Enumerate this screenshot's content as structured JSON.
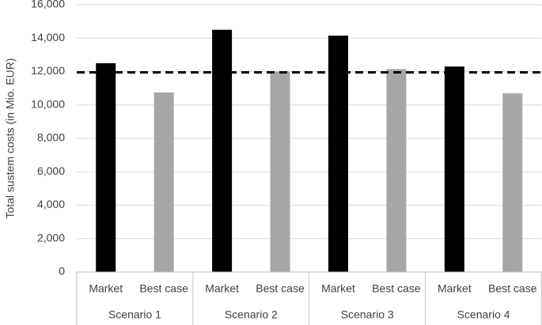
{
  "chart_data": {
    "type": "bar",
    "y_label": "Total sustem costs (in Mio. EUR)",
    "categories": [
      "Market",
      "Best case",
      "Market",
      "Best case",
      "Market",
      "Best case",
      "Market",
      "Best case"
    ],
    "groups": [
      "Scenario 1",
      "Scenario 2",
      "Scenario 3",
      "Scenario 4"
    ],
    "values": [
      12500,
      10750,
      14500,
      12000,
      14150,
      12150,
      12300,
      10700
    ],
    "bar_colors": [
      "#000000",
      "#a6a6a6"
    ],
    "reference_line": {
      "value": 11950,
      "color": "#000000",
      "dashed": true
    },
    "ylim": [
      0,
      16000
    ],
    "yticks": [
      0,
      {
        "value": 2000,
        "label": "2,000"
      },
      {
        "value": 4000,
        "label": "4,000"
      },
      {
        "value": 6000,
        "label": "6,000"
      },
      {
        "value": 8000,
        "label": "8,000"
      },
      {
        "value": 10000,
        "label": "10,000"
      },
      {
        "value": 12000,
        "label": "12,000"
      },
      {
        "value": 14000,
        "label": "14,000"
      },
      {
        "value": 16000,
        "label": "16,000"
      }
    ],
    "grid": true
  }
}
